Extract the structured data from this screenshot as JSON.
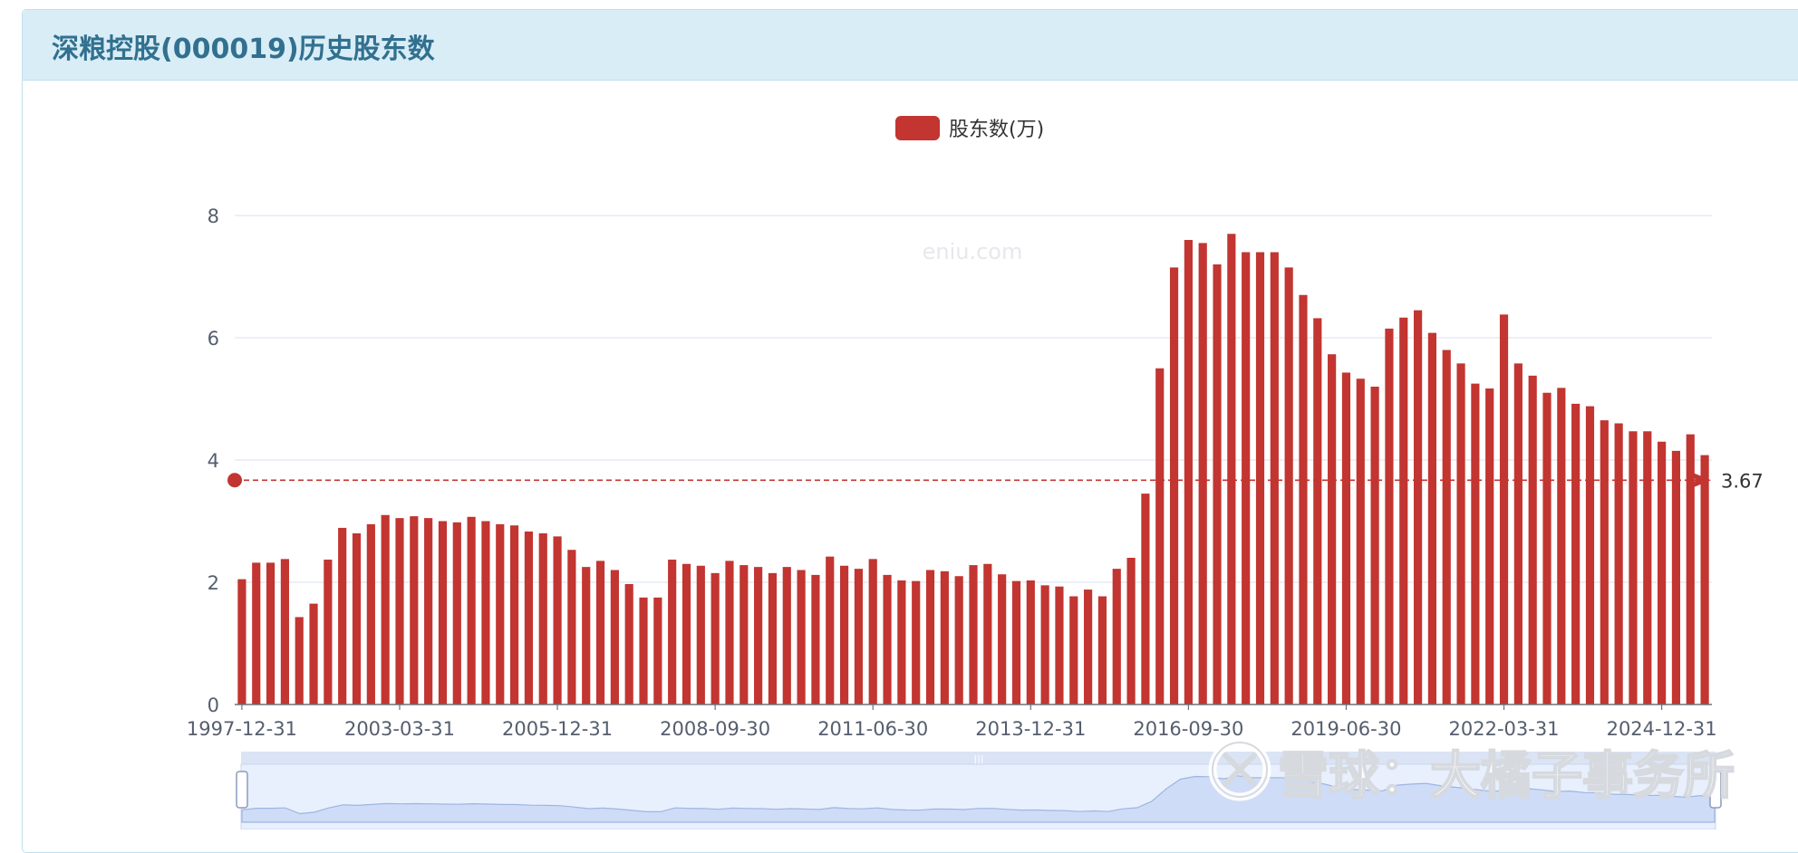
{
  "panel": {
    "title": "深粮控股(000019)历史股东数"
  },
  "legend": {
    "label": "股东数(万)",
    "color": "#c23531"
  },
  "watermark": "eniu.com",
  "xueqiu_watermark": "雪球：大橘子事务所",
  "mark_line": {
    "value": 3.67,
    "label": "3.67",
    "color": "#c23531"
  },
  "chart_data": {
    "type": "bar",
    "title": "深粮控股(000019)历史股东数",
    "xlabel": "",
    "ylabel": "",
    "ylim": [
      0,
      8
    ],
    "yticks": [
      0,
      2,
      4,
      6,
      8
    ],
    "grid": true,
    "legend_position": "top-center",
    "x_tick_labels": [
      "1997-12-31",
      "2003-03-31",
      "2005-12-31",
      "2008-09-30",
      "2011-06-30",
      "2013-12-31",
      "2016-09-30",
      "2019-06-30",
      "2022-03-31",
      "2024-12-31"
    ],
    "series": [
      {
        "name": "股东数(万)",
        "color": "#c23531",
        "values": [
          2.05,
          2.32,
          2.32,
          2.38,
          1.43,
          1.65,
          2.37,
          2.89,
          2.8,
          2.95,
          3.1,
          3.05,
          3.08,
          3.05,
          3.0,
          2.98,
          3.07,
          3.0,
          2.95,
          2.93,
          2.83,
          2.8,
          2.75,
          2.53,
          2.25,
          2.35,
          2.2,
          1.97,
          1.75,
          1.75,
          2.37,
          2.3,
          2.27,
          2.15,
          2.35,
          2.28,
          2.25,
          2.15,
          2.25,
          2.2,
          2.12,
          2.42,
          2.27,
          2.22,
          2.38,
          2.12,
          2.03,
          2.02,
          2.2,
          2.18,
          2.1,
          2.28,
          2.3,
          2.13,
          2.02,
          2.03,
          1.95,
          1.93,
          1.77,
          1.88,
          1.77,
          2.22,
          2.4,
          3.45,
          5.5,
          7.15,
          7.6,
          7.55,
          7.2,
          7.7,
          7.4,
          7.4,
          7.4,
          7.15,
          6.7,
          6.32,
          5.73,
          5.43,
          5.33,
          5.2,
          6.15,
          6.33,
          6.45,
          6.08,
          5.8,
          5.58,
          5.25,
          5.17,
          6.38,
          5.58,
          5.38,
          5.1,
          5.18,
          4.92,
          4.88,
          4.65,
          4.6,
          4.47,
          4.47,
          4.3,
          4.15,
          4.42,
          4.08
        ]
      }
    ]
  }
}
